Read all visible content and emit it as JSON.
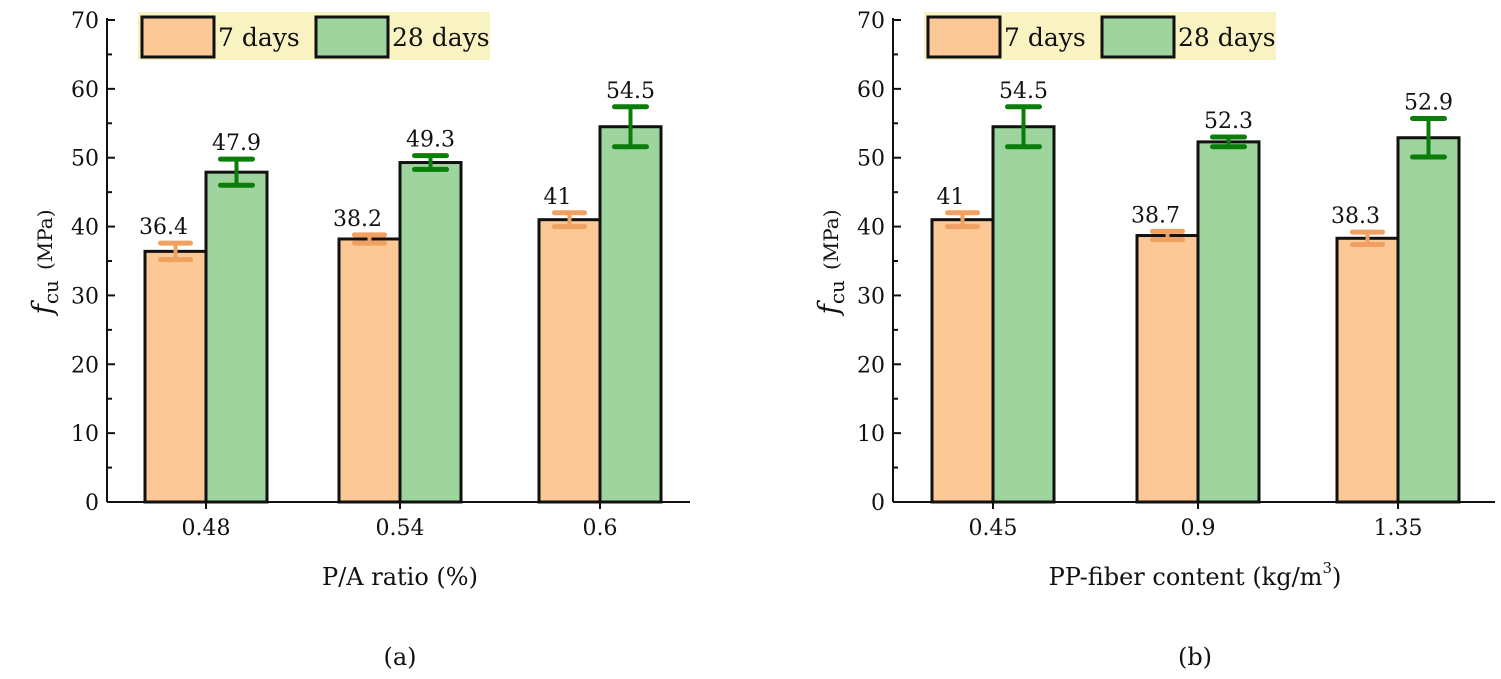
{
  "colors": {
    "day7": "#fbc896",
    "day28": "#9ed49e",
    "err7": "#f0a060",
    "err28": "#0a7d0a",
    "legend_bg": "#f8f3c0"
  },
  "chart_data": [
    {
      "type": "bar",
      "panel_label": "(a)",
      "xlabel": "P/A ratio (%)",
      "ylabel_main": "f",
      "ylabel_sub": "cu",
      "ylabel_unit": "(MPa)",
      "ylim": [
        0,
        70
      ],
      "yticks": [
        "0",
        "10",
        "20",
        "30",
        "40",
        "50",
        "60",
        "70"
      ],
      "categories": [
        "0.48",
        "0.54",
        "0.6"
      ],
      "legend": "top-left",
      "series": [
        {
          "name": "7 days",
          "values": [
            36.4,
            38.2,
            41
          ],
          "labels": [
            "36.4",
            "38.2",
            "41"
          ],
          "errors": [
            1.2,
            0.6,
            1.0
          ]
        },
        {
          "name": "28 days",
          "values": [
            47.9,
            49.3,
            54.5
          ],
          "labels": [
            "47.9",
            "49.3",
            "54.5"
          ],
          "errors": [
            1.9,
            1.0,
            2.9
          ]
        }
      ]
    },
    {
      "type": "bar",
      "panel_label": "(b)",
      "xlabel": "PP-fiber content (kg/m",
      "xlabel_sup": "3",
      "xlabel_close": ")",
      "ylabel_main": "f",
      "ylabel_sub": "cu",
      "ylabel_unit": "(MPa)",
      "ylim": [
        0,
        70
      ],
      "yticks": [
        "0",
        "10",
        "20",
        "30",
        "40",
        "50",
        "60",
        "70"
      ],
      "categories": [
        "0.45",
        "0.9",
        "1.35"
      ],
      "legend": "top-left",
      "series": [
        {
          "name": "7 days",
          "values": [
            41,
            38.7,
            38.3
          ],
          "labels": [
            "41",
            "38.7",
            "38.3"
          ],
          "errors": [
            1.0,
            0.6,
            0.9
          ]
        },
        {
          "name": "28 days",
          "values": [
            54.5,
            52.3,
            52.9
          ],
          "labels": [
            "54.5",
            "52.3",
            "52.9"
          ],
          "errors": [
            2.9,
            0.7,
            2.8
          ]
        }
      ]
    }
  ]
}
